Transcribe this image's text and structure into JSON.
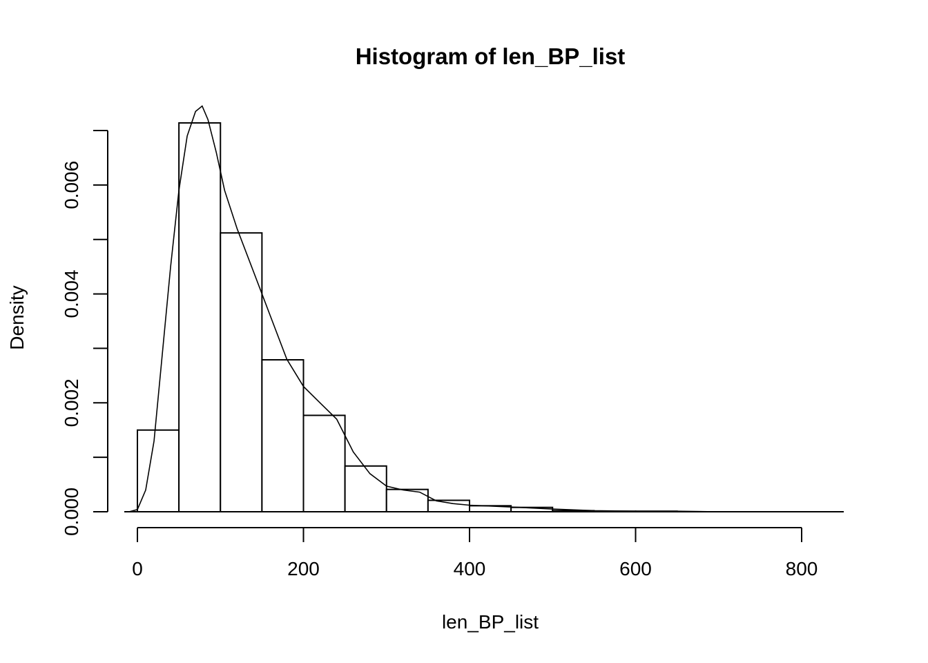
{
  "chart_data": {
    "type": "bar",
    "subtype": "histogram with density line",
    "title": "Histogram of len_BP_list",
    "xlabel": "len_BP_list",
    "ylabel": "Density",
    "xlim": [
      0,
      850
    ],
    "ylim": [
      0,
      0.007
    ],
    "x_ticks": [
      0,
      200,
      400,
      600,
      800
    ],
    "y_ticks": [
      0.0,
      0.001,
      0.002,
      0.003,
      0.004,
      0.005,
      0.006,
      0.007
    ],
    "y_tick_labels": [
      {
        "value": 0.0,
        "label": "0.000"
      },
      {
        "value": 0.002,
        "label": "0.002"
      },
      {
        "value": 0.004,
        "label": "0.004"
      },
      {
        "value": 0.006,
        "label": "0.006"
      }
    ],
    "bin_edges": [
      0,
      50,
      100,
      150,
      200,
      250,
      300,
      350,
      400,
      450,
      500,
      550,
      600,
      650,
      700,
      750,
      800,
      850
    ],
    "values": [
      0.0015,
      0.00714,
      0.00512,
      0.00279,
      0.00177,
      0.00084,
      0.00041,
      0.00021,
      0.00011,
      8e-05,
      2e-05,
      1e-05,
      1e-05,
      0.0,
      0.0,
      0.0,
      0.0
    ],
    "density_curve": {
      "x": [
        -10,
        0,
        10,
        20,
        30,
        40,
        50,
        60,
        70,
        78,
        85,
        95,
        105,
        120,
        140,
        160,
        180,
        200,
        220,
        240,
        260,
        280,
        300,
        320,
        340,
        360,
        380,
        400,
        430,
        460,
        500,
        550,
        600,
        650,
        700,
        800,
        850
      ],
      "y": [
        0.0,
        4e-05,
        0.0004,
        0.0013,
        0.0029,
        0.0045,
        0.0059,
        0.0069,
        0.00735,
        0.00745,
        0.0072,
        0.0066,
        0.0059,
        0.0052,
        0.0044,
        0.0036,
        0.0028,
        0.0023,
        0.002,
        0.0017,
        0.0011,
        0.0007,
        0.00047,
        0.0004,
        0.00036,
        0.0002,
        0.00015,
        0.00012,
        0.0001,
        8e-05,
        5e-05,
        2e-05,
        1e-05,
        1e-05,
        0.0,
        0.0,
        0.0
      ]
    },
    "grid": false,
    "legend": "none"
  }
}
